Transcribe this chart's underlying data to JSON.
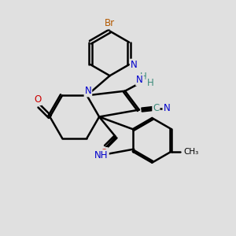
{
  "background_color": "#e0e0e0",
  "bond_color": "#000000",
  "bond_width": 1.8,
  "atom_colors": {
    "C": "#000000",
    "N": "#0000cc",
    "O": "#cc0000",
    "Br": "#b35900",
    "H": "#3a8a7a",
    "teal": "#3a8a7a"
  },
  "font_size": 8.5,
  "figsize": [
    3.0,
    3.0
  ],
  "dpi": 100
}
